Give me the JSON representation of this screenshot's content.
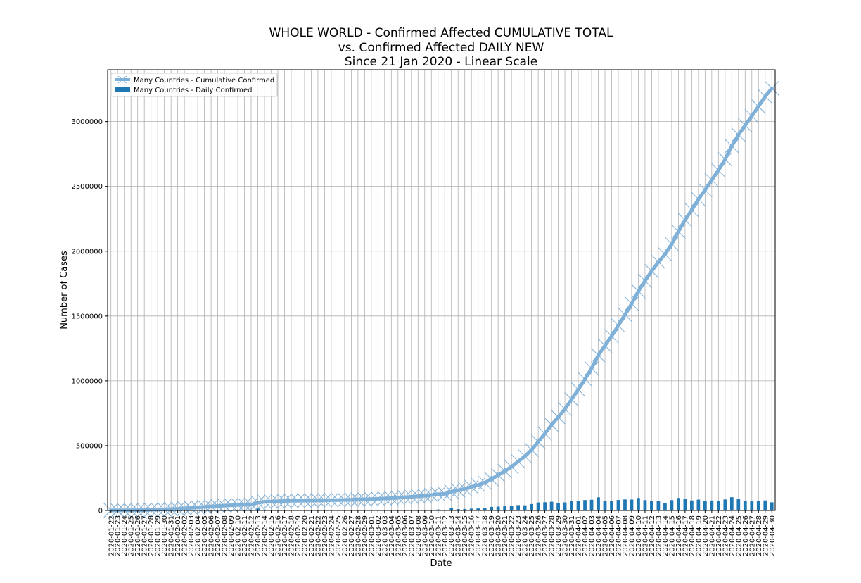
{
  "chart_data": {
    "type": "line",
    "title_lines": [
      "WHOLE WORLD - Confirmed Affected CUMULATIVE TOTAL",
      "vs. Confirmed Affected DAILY NEW",
      "Since 21 Jan 2020 - Linear Scale"
    ],
    "xlabel": "Date",
    "ylabel": "Number of Cases",
    "ylim": [
      0,
      3400000
    ],
    "yticks": [
      "0",
      "500000",
      "1000000",
      "1500000",
      "2000000",
      "2500000",
      "3000000"
    ],
    "ytick_values": [
      0,
      500000,
      1000000,
      1500000,
      2000000,
      2500000,
      3000000
    ],
    "grid": true,
    "legend_position": "top-left",
    "x": [
      "2020-01-22",
      "2020-01-23",
      "2020-01-24",
      "2020-01-25",
      "2020-01-26",
      "2020-01-27",
      "2020-01-28",
      "2020-01-29",
      "2020-01-30",
      "2020-01-31",
      "2020-02-01",
      "2020-02-02",
      "2020-02-03",
      "2020-02-04",
      "2020-02-05",
      "2020-02-06",
      "2020-02-07",
      "2020-02-08",
      "2020-02-09",
      "2020-02-10",
      "2020-02-11",
      "2020-02-12",
      "2020-02-13",
      "2020-02-14",
      "2020-02-15",
      "2020-02-16",
      "2020-02-17",
      "2020-02-18",
      "2020-02-19",
      "2020-02-20",
      "2020-02-21",
      "2020-02-22",
      "2020-02-23",
      "2020-02-24",
      "2020-02-25",
      "2020-02-26",
      "2020-02-27",
      "2020-02-28",
      "2020-02-29",
      "2020-03-01",
      "2020-03-02",
      "2020-03-03",
      "2020-03-04",
      "2020-03-05",
      "2020-03-06",
      "2020-03-07",
      "2020-03-08",
      "2020-03-09",
      "2020-03-10",
      "2020-03-11",
      "2020-03-12",
      "2020-03-13",
      "2020-03-14",
      "2020-03-15",
      "2020-03-16",
      "2020-03-17",
      "2020-03-18",
      "2020-03-19",
      "2020-03-20",
      "2020-03-21",
      "2020-03-22",
      "2020-03-23",
      "2020-03-24",
      "2020-03-25",
      "2020-03-26",
      "2020-03-27",
      "2020-03-28",
      "2020-03-29",
      "2020-03-30",
      "2020-03-31",
      "2020-04-01",
      "2020-04-02",
      "2020-04-03",
      "2020-04-04",
      "2020-04-05",
      "2020-04-06",
      "2020-04-07",
      "2020-04-08",
      "2020-04-09",
      "2020-04-10",
      "2020-04-11",
      "2020-04-12",
      "2020-04-13",
      "2020-04-14",
      "2020-04-15",
      "2020-04-16",
      "2020-04-17",
      "2020-04-18",
      "2020-04-19",
      "2020-04-20",
      "2020-04-21",
      "2020-04-22",
      "2020-04-23",
      "2020-04-24",
      "2020-04-25",
      "2020-04-26",
      "2020-04-27",
      "2020-04-28",
      "2020-04-29",
      "2020-04-30"
    ],
    "series": [
      {
        "name": "Many Countries - Cumulative Confirmed",
        "kind": "line",
        "color": "#7fb0d8",
        "values": [
          555,
          654,
          941,
          1434,
          2118,
          2927,
          5578,
          6166,
          8234,
          9927,
          12038,
          16787,
          19887,
          23898,
          27643,
          30802,
          34395,
          37129,
          40159,
          42768,
          44810,
          45228,
          60381,
          66908,
          69052,
          71235,
          73270,
          75152,
          75652,
          76212,
          76841,
          78599,
          78985,
          79570,
          80415,
          81397,
          82756,
          84124,
          86013,
          88371,
          90306,
          92840,
          95120,
          97886,
          101801,
          105847,
          109821,
          113590,
          118620,
          125875,
          128352,
          145205,
          156101,
          167454,
          181574,
          197102,
          214821,
          242570,
          272208,
          304507,
          336953,
          378235,
          418045,
          467653,
          529591,
          593291,
          660706,
          720140,
          782389,
          857487,
          932605,
          1013157,
          1095917,
          1197405,
          1272115,
          1345101,
          1426096,
          1511104,
          1595350,
          1691719,
          1771514,
          1846679,
          1917320,
          1976192,
          2056055,
          2152437,
          2240191,
          2317758,
          2401379,
          2472259,
          2549294,
          2623960,
          2708885,
          2811193,
          2897645,
          2971475,
          3041764,
          3116398,
          3193886,
          3256846
        ]
      },
      {
        "name": "Many Countries - Daily Confirmed",
        "kind": "bar",
        "color": "#1f77b4",
        "values": [
          555,
          99,
          287,
          493,
          684,
          809,
          2651,
          588,
          2068,
          1693,
          2111,
          4749,
          3100,
          4011,
          3745,
          3159,
          3593,
          2734,
          3030,
          2609,
          2042,
          418,
          15153,
          6527,
          2144,
          2183,
          2035,
          1882,
          500,
          560,
          629,
          1758,
          386,
          585,
          845,
          982,
          1359,
          1368,
          1889,
          2358,
          1935,
          2534,
          2280,
          2766,
          3915,
          4046,
          3974,
          3769,
          5030,
          7255,
          2477,
          16853,
          10896,
          11353,
          14120,
          15528,
          17719,
          27749,
          29638,
          32299,
          32446,
          41282,
          39810,
          49608,
          61938,
          63700,
          67415,
          59434,
          62249,
          75098,
          75118,
          80552,
          82760,
          101488,
          74710,
          72986,
          80995,
          85008,
          84246,
          96369,
          79795,
          75165,
          70641,
          58872,
          79863,
          96382,
          87754,
          77567,
          83621,
          70880,
          77035,
          74666,
          84925,
          102308,
          86452,
          73830,
          70289,
          74634,
          77488,
          62960
        ]
      }
    ]
  }
}
